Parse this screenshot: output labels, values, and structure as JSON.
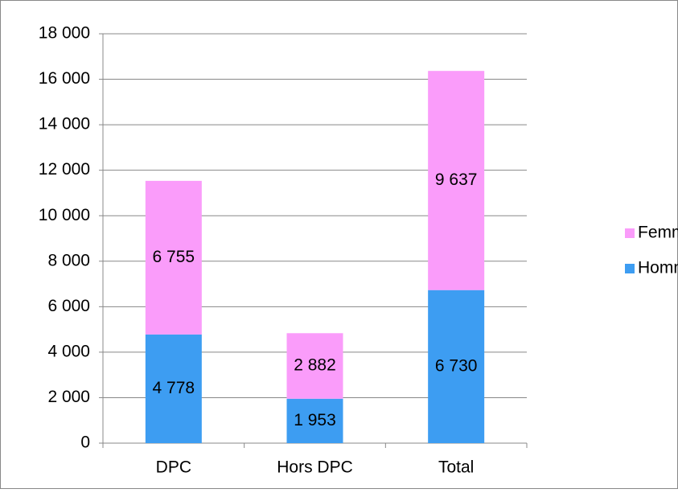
{
  "chart_data": {
    "type": "stacked_bar",
    "categories": [
      "DPC",
      "Hors DPC",
      "Total"
    ],
    "series": [
      {
        "name": "Hommes",
        "color": "#3d9df2",
        "values": [
          4778,
          1953,
          6730
        ],
        "value_labels": [
          "4 778",
          "1 953",
          "6 730"
        ]
      },
      {
        "name": "Femmes",
        "color": "#fa9cfa",
        "values": [
          6755,
          2882,
          9637
        ],
        "value_labels": [
          "6 755",
          "2 882",
          "9 637"
        ]
      }
    ],
    "ylim": [
      0,
      18000
    ],
    "yticks": [
      0,
      {
        "value": 2000,
        "label": "2 000"
      },
      {
        "value": 4000,
        "label": "4 000"
      },
      {
        "value": 6000,
        "label": "6 000"
      },
      {
        "value": 8000,
        "label": "8 000"
      },
      {
        "value": 10000,
        "label": "10 000"
      },
      {
        "value": 12000,
        "label": "12 000"
      },
      {
        "value": 14000,
        "label": "14 000"
      },
      {
        "value": 16000,
        "label": "16 000"
      },
      {
        "value": 18000,
        "label": "18 000"
      }
    ],
    "grid": true,
    "legend": "right"
  }
}
